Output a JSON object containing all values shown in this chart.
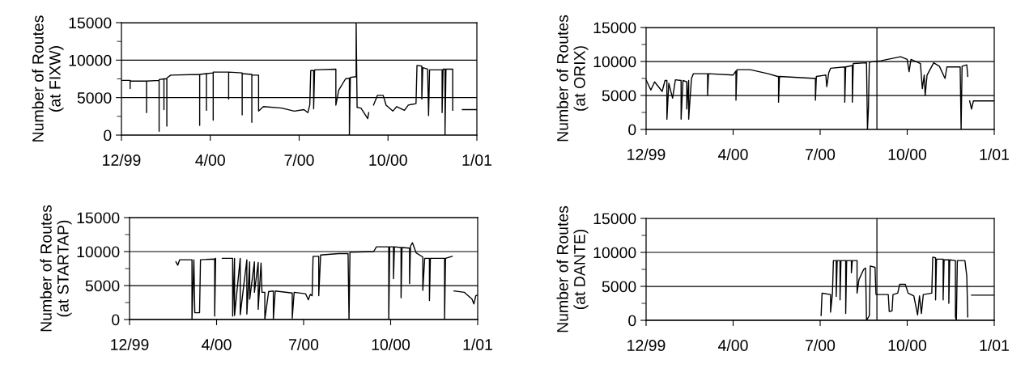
{
  "chart_data": [
    {
      "type": "line",
      "ylabel": "Number of Routes\n(at FIXW)",
      "color": "#000000",
      "xlim": [
        "1999-12-31",
        "2001-01-02"
      ],
      "ylim": [
        0,
        15000
      ],
      "yticks": [
        0,
        5000,
        10000,
        15000
      ],
      "grid": "y",
      "xticks": [
        {
          "value": "1999-12-31",
          "label": "12/99"
        },
        {
          "value": "2000-04-01",
          "label": "4/00"
        },
        {
          "value": "2000-07-02",
          "label": "7/00"
        },
        {
          "value": "2000-10-02",
          "label": "10/00"
        },
        {
          "value": "2001-01-02",
          "label": "1/01"
        }
      ],
      "x": [
        "1999-12-31",
        "2000-01-09",
        "2000-01-09",
        "2000-01-09",
        "2000-01-26",
        "2000-01-26",
        "2000-01-26",
        "2000-02-08",
        "2000-02-08",
        "2000-02-08",
        "2000-02-13",
        "2000-02-13",
        "2000-02-13",
        "2000-02-16",
        "2000-02-16",
        "2000-02-16",
        "2000-02-20",
        "2000-03-21",
        "2000-03-21",
        "2000-03-21",
        "2000-03-28",
        "2000-03-28",
        "2000-03-28",
        "2000-04-04",
        "2000-04-04",
        "2000-04-04",
        "2000-04-20",
        "2000-04-20",
        "2000-04-20",
        "2000-05-04",
        "2000-05-04",
        "2000-05-04",
        "2000-05-14",
        "2000-05-14",
        "2000-05-14",
        "2000-05-21",
        "2000-05-21",
        "2000-05-26",
        "2000-06-14",
        "2000-06-27",
        "2000-07-07",
        "2000-07-11",
        "2000-07-13",
        "2000-07-14",
        "2000-07-17",
        "2000-07-17",
        "2000-07-18",
        "2000-08-09",
        "2000-08-09",
        "2000-08-12",
        "2000-08-19",
        "2000-08-23",
        "2000-08-23",
        "2000-08-24",
        "2000-08-30",
        "2000-08-30",
        "2000-08-31",
        "2000-09-04",
        "2000-09-11",
        "2000-09-12",
        "2000-09-14",
        "2000-09-17",
        "2000-09-21",
        "2000-09-27",
        "2000-09-30",
        "2000-10-07",
        "2000-10-11",
        "2000-10-19",
        "2000-10-23",
        "2000-10-31",
        "2000-11-01",
        "2000-11-06",
        "2000-11-06",
        "2000-11-07",
        "2000-11-12",
        "2000-11-13",
        "2000-11-14",
        "2000-11-27",
        "2000-11-27",
        "2000-11-28",
        "2000-11-30",
        "2000-11-30",
        "2000-12-01",
        "2000-12-08",
        "2000-12-08",
        "2000-12-13",
        "2000-12-18",
        "2001-01-02"
      ],
      "values": [
        7300,
        7300,
        6200,
        7200,
        7200,
        3000,
        7200,
        7300,
        500,
        7400,
        7500,
        3400,
        7500,
        7500,
        1200,
        7600,
        8000,
        8100,
        1300,
        8100,
        8200,
        3300,
        8200,
        8300,
        2000,
        8400,
        8400,
        4800,
        8400,
        8300,
        2700,
        8200,
        8100,
        1700,
        8000,
        8000,
        3200,
        3800,
        3600,
        3200,
        3400,
        3000,
        4000,
        8600,
        8600,
        3500,
        8700,
        8800,
        4000,
        6000,
        7500,
        7600,
        0,
        7700,
        7800,
        15000,
        3700,
        3600,
        2200,
        3000,
        null,
        4000,
        5300,
        5300,
        4000,
        3200,
        3800,
        3300,
        4000,
        4200,
        9300,
        9200,
        4800,
        9000,
        8800,
        2600,
        8700,
        8700,
        3000,
        8800,
        8800,
        0,
        8800,
        8800,
        3300,
        null,
        3400,
        3400
      ]
    },
    {
      "type": "line",
      "ylabel": "Number of Routes\n(at ORIX)",
      "color": "#000000",
      "xlim": [
        "1999-12-31",
        "2001-01-02"
      ],
      "ylim": [
        0,
        15000
      ],
      "yticks": [
        0,
        5000,
        10000,
        15000
      ],
      "grid": "y",
      "xticks": [
        {
          "value": "1999-12-31",
          "label": "12/99"
        },
        {
          "value": "2000-04-01",
          "label": "4/00"
        },
        {
          "value": "2000-07-02",
          "label": "7/00"
        },
        {
          "value": "2000-10-02",
          "label": "10/00"
        },
        {
          "value": "2001-01-02",
          "label": "1/01"
        }
      ],
      "ref_lines": [
        {
          "axis": "x",
          "value": "2000-08-31",
          "color": "#000000"
        }
      ],
      "x": [
        "1999-12-31",
        "2000-01-05",
        "2000-01-09",
        "2000-01-17",
        "2000-01-20",
        "2000-01-22",
        "2000-01-22",
        "2000-01-24",
        "2000-01-28",
        "2000-01-31",
        "2000-02-06",
        "2000-02-06",
        "2000-02-08",
        "2000-02-12",
        "2000-02-12",
        "2000-02-14",
        "2000-02-14",
        "2000-02-17",
        "2000-02-19",
        "2000-03-05",
        "2000-03-05",
        "2000-03-06",
        "2000-04-01",
        "2000-04-04",
        "2000-04-04",
        "2000-04-05",
        "2000-04-19",
        "2000-05-08",
        "2000-05-18",
        "2000-05-19",
        "2000-05-19",
        "2000-05-20",
        "2000-06-27",
        "2000-06-27",
        "2000-06-28",
        "2000-07-08",
        "2000-07-09",
        "2000-07-11",
        "2000-07-13",
        "2000-07-28",
        "2000-07-28",
        "2000-07-29",
        "2000-08-05",
        "2000-08-05",
        "2000-08-06",
        "2000-08-20",
        "2000-08-21",
        "2000-08-22",
        "2000-08-23",
        "2000-09-04",
        "2000-09-25",
        "2000-10-02",
        "2000-10-04",
        "2000-10-06",
        "2000-10-16",
        "2000-10-18",
        "2000-10-20",
        "2000-10-21",
        "2000-10-23",
        "2000-10-30",
        "2000-11-05",
        "2000-11-11",
        "2000-11-13",
        "2000-11-27",
        "2000-11-28",
        "2000-11-29",
        "2000-12-04",
        "2000-12-05",
        "2000-12-06",
        "2000-12-07",
        "2000-12-09",
        "2000-12-11",
        "2001-01-02"
      ],
      "values": [
        7300,
        5800,
        7000,
        5600,
        7200,
        7200,
        1500,
        6800,
        4600,
        7300,
        7200,
        1500,
        7200,
        7000,
        3000,
        7200,
        1500,
        7500,
        8200,
        8200,
        5000,
        8200,
        8000,
        8600,
        4300,
        8800,
        8800,
        8200,
        7800,
        7800,
        4000,
        7800,
        7500,
        4300,
        7800,
        8000,
        6300,
        8300,
        9000,
        9200,
        4000,
        9200,
        9400,
        4000,
        9700,
        9800,
        0,
        3000,
        9900,
        10100,
        10700,
        10300,
        8500,
        10300,
        9700,
        6000,
        8000,
        5000,
        8000,
        9800,
        9300,
        7500,
        9200,
        9200,
        0,
        9300,
        9500,
        7800,
        null,
        4200,
        3000,
        4200,
        4200
      ]
    },
    {
      "type": "line",
      "ylabel": "Number of Routes\n(at STARTAP)",
      "color": "#000000",
      "xlim": [
        "1999-12-31",
        "2001-01-02"
      ],
      "ylim": [
        0,
        15000
      ],
      "yticks": [
        0,
        5000,
        10000,
        15000
      ],
      "grid": "y",
      "xticks": [
        {
          "value": "1999-12-31",
          "label": "12/99"
        },
        {
          "value": "2000-04-01",
          "label": "4/00"
        },
        {
          "value": "2000-07-02",
          "label": "7/00"
        },
        {
          "value": "2000-10-02",
          "label": "10/00"
        },
        {
          "value": "2001-01-02",
          "label": "1/01"
        }
      ],
      "x": [
        "2000-02-18",
        "2000-02-20",
        "2000-02-22",
        "2000-03-06",
        "2000-03-06",
        "2000-03-08",
        "2000-03-09",
        "2000-03-14",
        "2000-03-15",
        "2000-03-30",
        "2000-03-30",
        "2000-03-31",
        "2000-04-03",
        "2000-04-07",
        "2000-04-18",
        "2000-04-18",
        "2000-04-20",
        "2000-04-20",
        "2000-04-26",
        "2000-04-26",
        "2000-05-03",
        "2000-05-03",
        "2000-05-06",
        "2000-05-06",
        "2000-05-11",
        "2000-05-11",
        "2000-05-15",
        "2000-05-15",
        "2000-05-18",
        "2000-05-19",
        "2000-05-22",
        "2000-05-22",
        "2000-05-26",
        "2000-05-31",
        "2000-05-31",
        "2000-06-02",
        "2000-06-20",
        "2000-06-20",
        "2000-06-22",
        "2000-07-04",
        "2000-07-07",
        "2000-07-09",
        "2000-07-11",
        "2000-07-12",
        "2000-07-18",
        "2000-07-18",
        "2000-07-20",
        "2000-08-08",
        "2000-08-18",
        "2000-08-19",
        "2000-08-20",
        "2000-09-14",
        "2000-09-17",
        "2000-09-30",
        "2000-09-30",
        "2000-10-01",
        "2000-10-05",
        "2000-10-05",
        "2000-10-06",
        "2000-10-13",
        "2000-10-13",
        "2000-10-14",
        "2000-10-22",
        "2000-10-22",
        "2000-10-23",
        "2000-10-25",
        "2000-10-29",
        "2000-11-05",
        "2000-11-05",
        "2000-11-07",
        "2000-11-12",
        "2000-11-12",
        "2000-11-13",
        "2000-11-28",
        "2000-11-28",
        "2000-11-29",
        "2000-12-06",
        "2000-12-07",
        "2000-12-08",
        "2000-12-19",
        "2000-12-27",
        "2000-12-29",
        "2000-12-31",
        "2001-01-02"
      ],
      "values": [
        8500,
        8000,
        8800,
        8800,
        0,
        8800,
        1000,
        1000,
        8800,
        8900,
        500,
        9000,
        null,
        9000,
        9000,
        500,
        9000,
        600,
        9000,
        700,
        8800,
        800,
        8500,
        3000,
        8500,
        4000,
        8400,
        1500,
        8300,
        4000,
        4000,
        0,
        4100,
        4200,
        0,
        4200,
        3900,
        200,
        4000,
        3800,
        2900,
        3700,
        3500,
        9300,
        9300,
        3500,
        9500,
        9700,
        9700,
        0,
        9900,
        10000,
        10700,
        10700,
        0,
        10700,
        10700,
        6000,
        10700,
        10600,
        3200,
        10600,
        10500,
        5300,
        10800,
        11300,
        9800,
        9200,
        4300,
        9000,
        9000,
        2800,
        9000,
        9000,
        0,
        9000,
        9300,
        null,
        4200,
        4000,
        3000,
        2300,
        3500,
        3600
      ]
    },
    {
      "type": "line",
      "ylabel": "Number of Routes\n(at DANTE)",
      "color": "#000000",
      "xlim": [
        "1999-12-31",
        "2001-01-02"
      ],
      "ylim": [
        0,
        15000
      ],
      "yticks": [
        0,
        5000,
        10000,
        15000
      ],
      "grid": "y",
      "xticks": [
        {
          "value": "1999-12-31",
          "label": "12/99"
        },
        {
          "value": "2000-04-01",
          "label": "4/00"
        },
        {
          "value": "2000-07-02",
          "label": "7/00"
        },
        {
          "value": "2000-10-02",
          "label": "10/00"
        },
        {
          "value": "2001-01-02",
          "label": "1/01"
        }
      ],
      "ref_lines": [
        {
          "axis": "x",
          "value": "2000-08-31",
          "color": "#000000"
        }
      ],
      "x": [
        "2000-07-03",
        "2000-07-04",
        "2000-07-13",
        "2000-07-13",
        "2000-07-15",
        "2000-07-16",
        "2000-07-19",
        "2000-07-19",
        "2000-07-20",
        "2000-07-23",
        "2000-07-23",
        "2000-07-24",
        "2000-07-29",
        "2000-07-29",
        "2000-07-30",
        "2000-08-04",
        "2000-08-04",
        "2000-08-05",
        "2000-08-10",
        "2000-08-10",
        "2000-08-12",
        "2000-08-17",
        "2000-08-19",
        "2000-08-20",
        "2000-08-23",
        "2000-08-24",
        "2000-08-29",
        "2000-08-30",
        "2000-09-12",
        "2000-09-13",
        "2000-09-16",
        "2000-09-17",
        "2000-09-22",
        "2000-09-24",
        "2000-09-30",
        "2000-10-03",
        "2000-10-09",
        "2000-10-13",
        "2000-10-15",
        "2000-10-17",
        "2000-10-19",
        "2000-10-28",
        "2000-10-29",
        "2000-11-01",
        "2000-11-01",
        "2000-11-02",
        "2000-11-09",
        "2000-11-09",
        "2000-11-10",
        "2000-11-15",
        "2000-11-15",
        "2000-11-16",
        "2000-11-22",
        "2000-11-22",
        "2000-11-23",
        "2000-11-24",
        "2000-12-02",
        "2000-12-04",
        "2000-12-05",
        "2000-12-07",
        "2000-12-09",
        "2001-01-02"
      ],
      "values": [
        700,
        4000,
        3800,
        1200,
        4000,
        8800,
        8800,
        3500,
        8800,
        8800,
        3000,
        8800,
        8800,
        1000,
        8800,
        8800,
        7000,
        8800,
        8800,
        4000,
        6000,
        7500,
        7700,
        0,
        700,
        8000,
        7800,
        3800,
        3800,
        1300,
        1400,
        3800,
        4000,
        5300,
        5300,
        4000,
        3600,
        800,
        3600,
        1000,
        3800,
        4000,
        9300,
        9200,
        3000,
        9000,
        9000,
        3000,
        8900,
        8900,
        2500,
        8900,
        8800,
        500,
        0,
        8800,
        8800,
        6500,
        500,
        null,
        3700,
        3700
      ]
    }
  ]
}
